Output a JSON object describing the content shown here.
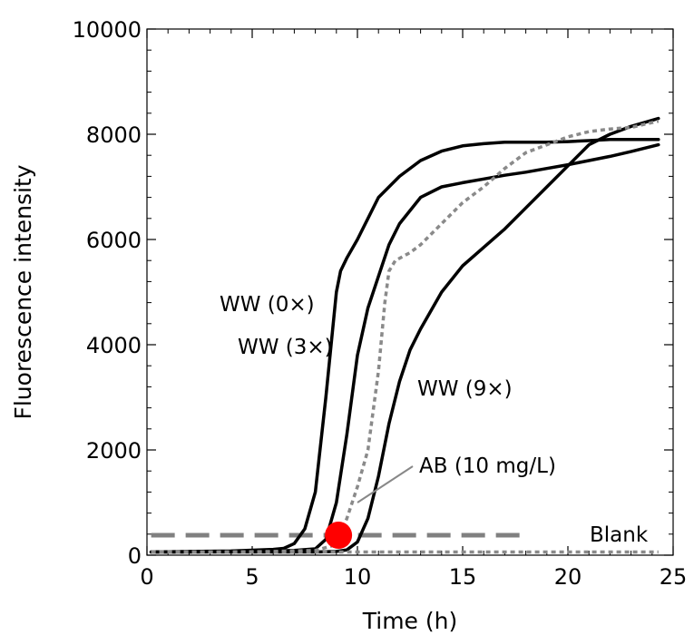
{
  "chart_data": {
    "type": "line",
    "title": "",
    "xlabel": "Time (h)",
    "ylabel": "Fluorescence intensity",
    "xlim": [
      0,
      25
    ],
    "ylim": [
      0,
      10000
    ],
    "xticks": [
      0,
      5,
      10,
      15,
      20,
      25
    ],
    "yticks": [
      0,
      2000,
      4000,
      6000,
      8000,
      10000
    ],
    "grid": false,
    "legend": "none",
    "series": [
      {
        "name": "WW (0×)",
        "style": "solid",
        "color": "#000000",
        "x": [
          0.2,
          2,
          4,
          5,
          6,
          6.5,
          7.0,
          7.5,
          8.0,
          8.5,
          9.0,
          9.2,
          9.5,
          10.0,
          10.5,
          11,
          12,
          13,
          14,
          15,
          16,
          17,
          18,
          19,
          20,
          21,
          22,
          23,
          24.3
        ],
        "y": [
          60,
          70,
          80,
          95,
          110,
          130,
          220,
          500,
          1200,
          3000,
          5000,
          5400,
          5650,
          6000,
          6400,
          6800,
          7200,
          7500,
          7680,
          7780,
          7820,
          7850,
          7850,
          7850,
          7860,
          7880,
          7900,
          7900,
          7900
        ]
      },
      {
        "name": "WW (3×)",
        "style": "solid",
        "color": "#000000",
        "x": [
          0.2,
          2,
          4,
          6,
          7,
          8.0,
          8.5,
          9.0,
          9.5,
          10.0,
          10.5,
          11.0,
          11.5,
          12,
          13,
          14,
          15,
          16,
          17,
          18,
          19,
          20,
          21,
          22,
          23,
          24.3
        ],
        "y": [
          60,
          60,
          70,
          80,
          90,
          120,
          300,
          1000,
          2300,
          3800,
          4700,
          5300,
          5900,
          6300,
          6800,
          7000,
          7080,
          7150,
          7220,
          7280,
          7350,
          7420,
          7500,
          7580,
          7670,
          7800
        ]
      },
      {
        "name": "WW (9×)",
        "style": "solid",
        "color": "#000000",
        "x": [
          0.2,
          2,
          4,
          6,
          8,
          9,
          9.5,
          10,
          10.5,
          11.0,
          11.5,
          12.0,
          12.5,
          13,
          14,
          15,
          16,
          17,
          18,
          19,
          20,
          21,
          22,
          23,
          24.3
        ],
        "y": [
          60,
          60,
          60,
          60,
          60,
          70,
          100,
          250,
          700,
          1500,
          2500,
          3300,
          3900,
          4300,
          5000,
          5500,
          5850,
          6200,
          6600,
          7000,
          7400,
          7800,
          8000,
          8150,
          8300
        ]
      },
      {
        "name": "AB (10 mg/L)",
        "style": "dotted",
        "color": "#8a8a8a",
        "x": [
          0.2,
          2,
          4,
          6,
          8,
          9.0,
          9.5,
          10.0,
          10.5,
          11.0,
          11.3,
          11.5,
          11.8,
          12.5,
          13,
          14,
          15,
          16,
          17,
          18,
          19,
          20,
          21,
          22,
          23,
          24.3
        ],
        "y": [
          60,
          60,
          60,
          70,
          90,
          200,
          700,
          1300,
          2000,
          3500,
          4800,
          5400,
          5600,
          5750,
          5900,
          6300,
          6700,
          7000,
          7350,
          7650,
          7800,
          7950,
          8050,
          8100,
          8130,
          8250
        ]
      },
      {
        "name": "Blank",
        "style": "dotted",
        "color": "#8a8a8a",
        "x": [
          0.2,
          24.3
        ],
        "y": [
          60,
          60
        ]
      }
    ],
    "threshold": {
      "y": 380,
      "x_start": 0.2,
      "x_end": 18,
      "color": "#808080",
      "style": "dashed"
    },
    "marker": {
      "x": 9.1,
      "y": 380,
      "color": "#ff0000"
    },
    "annotations": [
      {
        "text": "WW (0×)",
        "target": "WW (0×)"
      },
      {
        "text": "WW (3×)",
        "target": "WW (3×)"
      },
      {
        "text": "WW (9×)",
        "target": "WW (9×)"
      },
      {
        "text": "AB (10 mg/L)",
        "target": "AB (10 mg/L)",
        "pointer": {
          "x": 10,
          "y": 1000
        }
      },
      {
        "text": "Blank",
        "target": "Blank"
      }
    ]
  }
}
